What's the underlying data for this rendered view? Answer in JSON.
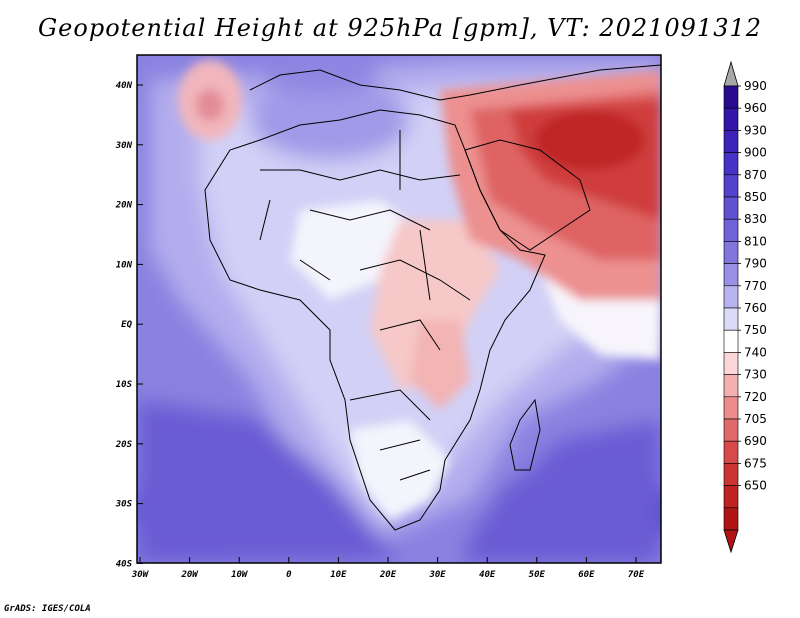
{
  "title": "Geopotential Height at 925hPa [gpm], VT: 2021091312",
  "credit": "GrADS: IGES/COLA",
  "lat_labels": [
    "40N",
    "30N",
    "20N",
    "10N",
    "EQ",
    "10S",
    "20S",
    "30S",
    "40S"
  ],
  "lon_labels": [
    "30W",
    "20W",
    "10W",
    "0",
    "10E",
    "20E",
    "30E",
    "40E",
    "50E",
    "60E",
    "70E"
  ],
  "colorbar": {
    "levels": [
      "990",
      "960",
      "930",
      "900",
      "870",
      "850",
      "830",
      "810",
      "790",
      "770",
      "760",
      "750",
      "740",
      "730",
      "720",
      "705",
      "690",
      "675",
      "650"
    ],
    "colors": [
      "#2a0a90",
      "#3214a8",
      "#3c22b8",
      "#4632c4",
      "#5242cc",
      "#6052d2",
      "#7062d8",
      "#8276de",
      "#9a90e6",
      "#b8b4f0",
      "#dcdcf8",
      "#ffffff",
      "#fad6d6",
      "#f4b0b0",
      "#ec8c8c",
      "#e06a6a",
      "#d64a4a",
      "#cc3434",
      "#be2222",
      "#b01414"
    ],
    "over_color": "#a8a8a8"
  }
}
